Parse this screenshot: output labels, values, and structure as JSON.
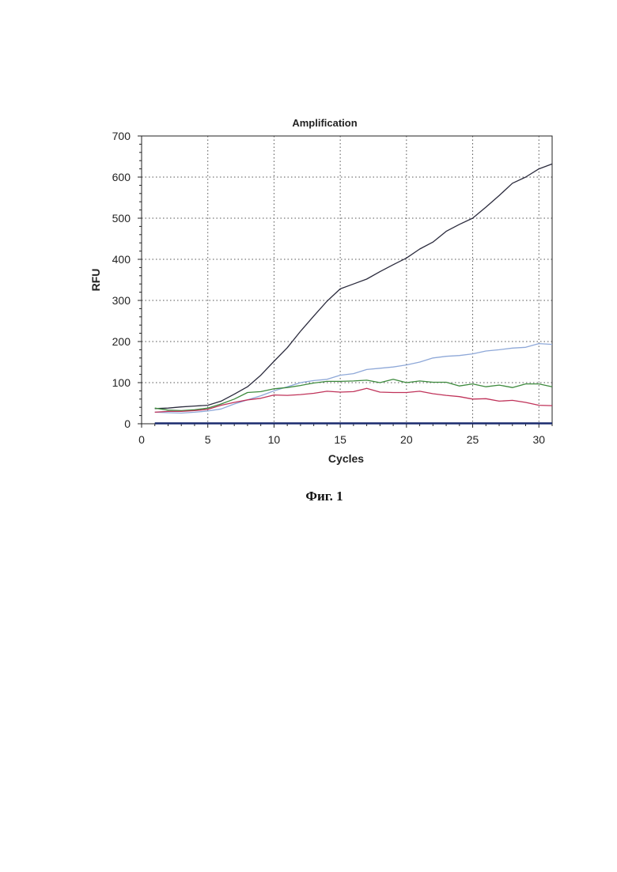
{
  "caption": "Фиг. 1",
  "chart_data": {
    "type": "line",
    "title": "Amplification",
    "xlabel": "Cycles",
    "ylabel": "RFU",
    "xlim": [
      0,
      31
    ],
    "ylim": [
      0,
      700
    ],
    "xticks": [
      0,
      5,
      10,
      15,
      20,
      25,
      30
    ],
    "yticks": [
      0,
      100,
      200,
      300,
      400,
      500,
      600,
      700
    ],
    "grid": true,
    "legend": "none",
    "x": [
      1,
      2,
      3,
      4,
      5,
      6,
      7,
      8,
      9,
      10,
      11,
      12,
      13,
      14,
      15,
      16,
      17,
      18,
      19,
      20,
      21,
      22,
      23,
      24,
      25,
      26,
      27,
      28,
      29,
      30,
      31
    ],
    "series": [
      {
        "color": "#2b2b3d",
        "values": [
          37,
          38,
          41,
          43,
          45,
          55,
          72,
          90,
          118,
          152,
          185,
          225,
          262,
          298,
          328,
          340,
          352,
          370,
          387,
          403,
          425,
          442,
          468,
          485,
          500,
          527,
          555,
          585,
          600,
          620,
          632
        ]
      },
      {
        "color": "#8ea8d8",
        "values": [
          28,
          27,
          26,
          28,
          31,
          36,
          48,
          58,
          68,
          80,
          90,
          100,
          105,
          108,
          118,
          122,
          132,
          135,
          138,
          143,
          150,
          160,
          164,
          166,
          170,
          177,
          180,
          184,
          186,
          195,
          193
        ]
      },
      {
        "color": "#3d8a3d",
        "values": [
          38,
          33,
          32,
          34,
          38,
          48,
          60,
          76,
          78,
          85,
          88,
          93,
          99,
          103,
          103,
          104,
          106,
          100,
          108,
          100,
          104,
          101,
          101,
          92,
          97,
          90,
          94,
          88,
          97,
          97,
          90
        ]
      },
      {
        "color": "#c0335a",
        "values": [
          28,
          30,
          30,
          32,
          35,
          45,
          52,
          58,
          62,
          70,
          69,
          71,
          74,
          79,
          77,
          78,
          86,
          77,
          76,
          76,
          79,
          73,
          69,
          66,
          60,
          61,
          55,
          57,
          52,
          45,
          44
        ]
      },
      {
        "color": "#1a2a6e",
        "values": [
          1,
          1,
          1,
          1,
          1,
          1,
          1,
          1,
          1,
          1,
          1,
          1,
          1,
          1,
          1,
          1,
          1,
          1,
          1,
          1,
          1,
          1,
          1,
          1,
          1,
          1,
          1,
          1,
          1,
          1,
          1
        ]
      }
    ]
  }
}
